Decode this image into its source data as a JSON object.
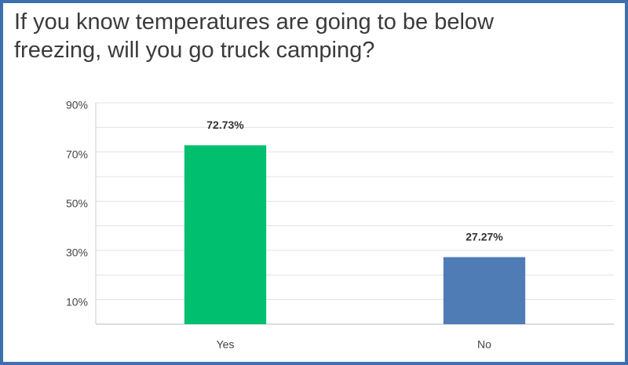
{
  "chart_data": {
    "type": "bar",
    "title": "If you know temperatures are going to be below freezing, will you go truck camping?",
    "categories": [
      "Yes",
      "No"
    ],
    "values": [
      72.73,
      27.27
    ],
    "value_labels": [
      "72.73%",
      "27.27%"
    ],
    "colors": [
      "#00bf6f",
      "#507cb6"
    ],
    "ylim": [
      0,
      90
    ],
    "yticks": [
      {
        "value": 10,
        "label": "10%"
      },
      {
        "value": 30,
        "label": "30%"
      },
      {
        "value": 50,
        "label": "50%"
      },
      {
        "value": 70,
        "label": "70%"
      },
      {
        "value": 90,
        "label": "90%"
      }
    ],
    "minor_yticks": [
      20,
      40,
      60,
      80
    ],
    "grid": true
  }
}
